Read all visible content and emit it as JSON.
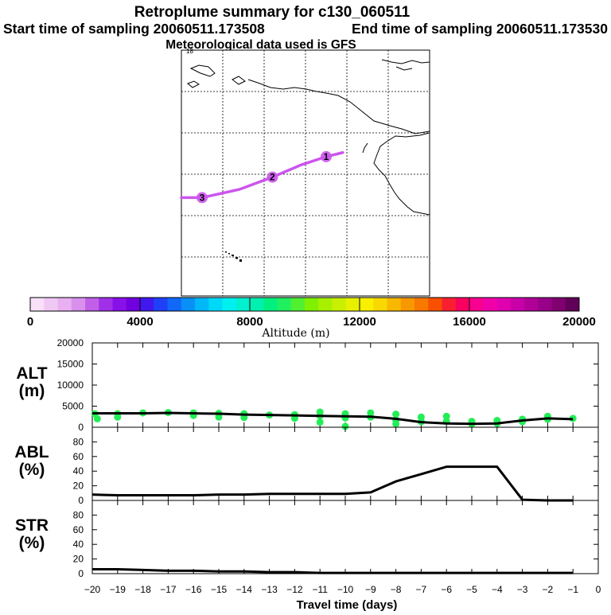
{
  "header": {
    "title": "Retroplume summary for c130_060511",
    "start_label": "Start time of sampling 20060511.173508",
    "end_label": "End time of sampling 20060511.173530",
    "met_label": "Meteorological data used is GFS"
  },
  "map": {
    "corner_label": "18",
    "trajectory_color": "#cc55ee",
    "markers": [
      {
        "label": "1",
        "lon": -125,
        "lat": 40
      },
      {
        "label": "2",
        "lon": -138,
        "lat": 35
      },
      {
        "label": "3",
        "lon": -155,
        "lat": 30
      }
    ],
    "trajectory": [
      {
        "lon": -121,
        "lat": 41
      },
      {
        "lon": -125,
        "lat": 40
      },
      {
        "lon": -131,
        "lat": 38
      },
      {
        "lon": -138,
        "lat": 35
      },
      {
        "lon": -146,
        "lat": 32
      },
      {
        "lon": -155,
        "lat": 30
      },
      {
        "lon": -160,
        "lat": 30
      }
    ]
  },
  "colorbar": {
    "title": "Altitude (m)",
    "min": 0,
    "max": 20000,
    "tick_labels": [
      "0",
      "4000",
      "8000",
      "12000",
      "16000",
      "20000"
    ],
    "colors": [
      "#f8e0f8",
      "#f0c8f4",
      "#e8b0f0",
      "#d890ec",
      "#c060e8",
      "#a030e8",
      "#8810e8",
      "#7000e0",
      "#4018f0",
      "#2040f8",
      "#1068f8",
      "#0890f8",
      "#00b8f8",
      "#00d8f8",
      "#00f0f0",
      "#00f0d0",
      "#00f0b0",
      "#00f080",
      "#20f060",
      "#50f030",
      "#80f000",
      "#a8f000",
      "#c8f000",
      "#e8f000",
      "#f8f000",
      "#f8d800",
      "#f8b800",
      "#f89800",
      "#f87800",
      "#f85000",
      "#f82030",
      "#f80060",
      "#f80090",
      "#f000a8",
      "#e000b0",
      "#c800a8",
      "#b00098",
      "#980088",
      "#800070",
      "#600058"
    ]
  },
  "chart_data": [
    {
      "type": "line",
      "panel": "ALT",
      "ylabel": "ALT\n(m)",
      "ylabel_lines": [
        "ALT",
        "(m)"
      ],
      "ylim": [
        0,
        20000
      ],
      "yticks": [
        0,
        5000,
        10000,
        15000,
        20000
      ],
      "ytick_labels": [
        "0",
        "5000",
        "10000",
        "15000",
        "20000"
      ],
      "x": [
        -20,
        -19,
        -18,
        -17,
        -16,
        -15,
        -14,
        -13,
        -12,
        -11,
        -10,
        -9,
        -8,
        -7,
        -6,
        -5,
        -4,
        -3,
        -2,
        -1
      ],
      "values": [
        3300,
        3300,
        3300,
        3400,
        3300,
        3200,
        3000,
        2900,
        2800,
        2700,
        2600,
        2500,
        2000,
        1200,
        900,
        800,
        900,
        1600,
        2100,
        1900
      ],
      "scatter_color": "#22ee55",
      "scatter_points": [
        {
          "x": -19.9,
          "y": 3200
        },
        {
          "x": -19.8,
          "y": 2000
        },
        {
          "x": -19,
          "y": 3200
        },
        {
          "x": -19,
          "y": 2400
        },
        {
          "x": -18,
          "y": 3400
        },
        {
          "x": -17,
          "y": 3500
        },
        {
          "x": -16,
          "y": 3400
        },
        {
          "x": -16,
          "y": 2800
        },
        {
          "x": -15,
          "y": 3300
        },
        {
          "x": -15,
          "y": 2400
        },
        {
          "x": -14,
          "y": 3200
        },
        {
          "x": -14,
          "y": 2300
        },
        {
          "x": -13,
          "y": 2900
        },
        {
          "x": -12,
          "y": 3000
        },
        {
          "x": -12,
          "y": 2100
        },
        {
          "x": -11,
          "y": 3600
        },
        {
          "x": -11,
          "y": 2700
        },
        {
          "x": -11,
          "y": 1200
        },
        {
          "x": -10,
          "y": 3200
        },
        {
          "x": -10,
          "y": 2200
        },
        {
          "x": -10,
          "y": 200
        },
        {
          "x": -9,
          "y": 3400
        },
        {
          "x": -9,
          "y": 2400
        },
        {
          "x": -8,
          "y": 3100
        },
        {
          "x": -8,
          "y": 1700
        },
        {
          "x": -8,
          "y": 800
        },
        {
          "x": -7,
          "y": 2400
        },
        {
          "x": -7,
          "y": 1300
        },
        {
          "x": -6,
          "y": 2600
        },
        {
          "x": -6,
          "y": 1400
        },
        {
          "x": -5,
          "y": 1400
        },
        {
          "x": -5,
          "y": 800
        },
        {
          "x": -4,
          "y": 1600
        },
        {
          "x": -4,
          "y": 900
        },
        {
          "x": -3,
          "y": 1900
        },
        {
          "x": -3,
          "y": 1300
        },
        {
          "x": -2,
          "y": 2600
        },
        {
          "x": -2,
          "y": 1900
        },
        {
          "x": -1,
          "y": 2100
        }
      ]
    },
    {
      "type": "line",
      "panel": "ABL",
      "ylabel": "ABL\n(%)",
      "ylabel_lines": [
        "ABL",
        "(%)"
      ],
      "ylim": [
        0,
        100
      ],
      "yticks": [
        0,
        20,
        40,
        60,
        80
      ],
      "ytick_labels": [
        "0",
        "20",
        "40",
        "60",
        "80"
      ],
      "x": [
        -20,
        -19,
        -18,
        -17,
        -16,
        -15,
        -14,
        -13,
        -12,
        -11,
        -10,
        -9,
        -8,
        -7,
        -6,
        -5,
        -4,
        -3,
        -2,
        -1
      ],
      "values": [
        8,
        7,
        7,
        7,
        7,
        8,
        8,
        9,
        9,
        9,
        9,
        11,
        26,
        36,
        46,
        46,
        46,
        1,
        0,
        0
      ]
    },
    {
      "type": "line",
      "panel": "STR",
      "ylabel": "STR\n(%)",
      "ylabel_lines": [
        "STR",
        "(%)"
      ],
      "ylim": [
        0,
        100
      ],
      "yticks": [
        0,
        20,
        40,
        60,
        80
      ],
      "ytick_labels": [
        "0",
        "20",
        "40",
        "60",
        "80"
      ],
      "x": [
        -20,
        -19,
        -18,
        -17,
        -16,
        -15,
        -14,
        -13,
        -12,
        -11,
        -10,
        -9,
        -8,
        -7,
        -6,
        -5,
        -4,
        -3,
        -2,
        -1
      ],
      "values": [
        6,
        6,
        5,
        4,
        4,
        3,
        3,
        2,
        2,
        1,
        1,
        1,
        1,
        1,
        1,
        1,
        1,
        1,
        1,
        1
      ]
    }
  ],
  "xaxis": {
    "xlabel": "Travel time (days)",
    "xlim": [
      -20,
      0
    ],
    "ticks": [
      -20,
      -19,
      -18,
      -17,
      -16,
      -15,
      -14,
      -13,
      -12,
      -11,
      -10,
      -9,
      -8,
      -7,
      -6,
      -5,
      -4,
      -3,
      -2,
      -1,
      0
    ],
    "tick_labels": [
      "−20",
      "−19",
      "−18",
      "−17",
      "−16",
      "−15",
      "−14",
      "−13",
      "−12",
      "−11",
      "−10",
      "−9",
      "−8",
      "−7",
      "−6",
      "−5",
      "−4",
      "−3",
      "−2",
      "−1",
      "0"
    ]
  }
}
